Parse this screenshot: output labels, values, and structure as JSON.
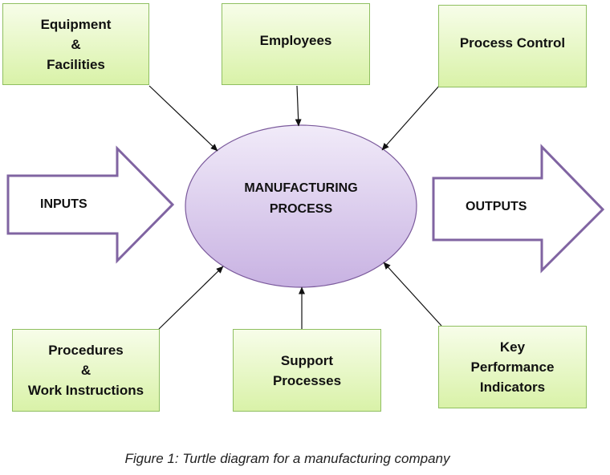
{
  "diagram": {
    "center": {
      "line1": "MANUFACTURING",
      "line2": "PROCESS"
    },
    "inputs": {
      "label": "INPUTS"
    },
    "outputs": {
      "label": "OUTPUTS"
    },
    "boxes": {
      "equipment": {
        "lines": [
          "Equipment",
          "&",
          "Facilities"
        ]
      },
      "employees": {
        "lines": [
          "Employees"
        ]
      },
      "process_control": {
        "lines": [
          "Process Control"
        ]
      },
      "procedures": {
        "lines": [
          "Procedures",
          "&",
          "Work Instructions"
        ]
      },
      "support": {
        "lines": [
          "Support",
          "Processes"
        ]
      },
      "kpi": {
        "lines": [
          "Key",
          "Performance",
          "Indicators"
        ]
      }
    },
    "colors": {
      "box_border": "#8fbf60",
      "box_fill": "#d9f2a8",
      "ellipse_fill": "#d6c5ea",
      "ellipse_border": "#7b5a9c",
      "big_arrow_border": "#8064a2"
    }
  },
  "caption": "Figure 1: Turtle diagram for a manufacturing company"
}
